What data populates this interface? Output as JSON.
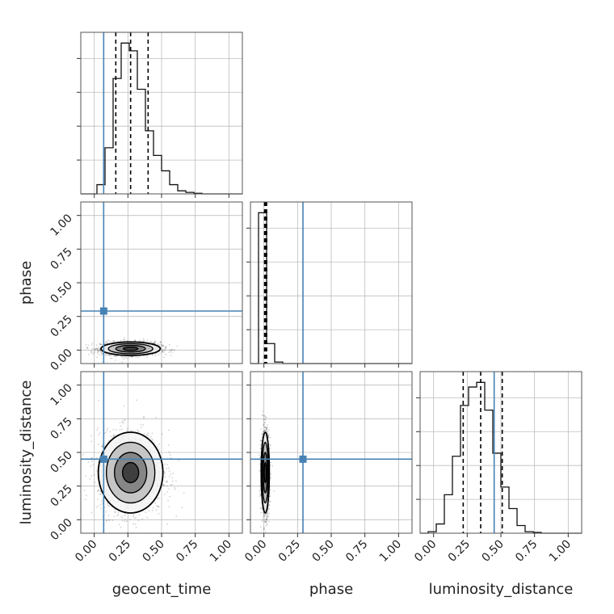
{
  "chart_data": {
    "type": "scatter",
    "title": "",
    "parameters": [
      "geocent_time",
      "phase",
      "luminosity_distance"
    ],
    "axis_labels": {
      "geocent_time": "geocent_time",
      "phase": "phase",
      "luminosity_distance": "luminosity_distance"
    },
    "range": [
      -0.1,
      1.1
    ],
    "ticks": [
      0.0,
      0.25,
      0.5,
      0.75,
      1.0
    ],
    "tick_labels": [
      "0.00",
      "0.25",
      "0.50",
      "0.75",
      "1.00"
    ],
    "grid": true,
    "truth_color": "#4682b4",
    "truths": {
      "geocent_time": 0.07,
      "phase": 0.29,
      "luminosity_distance": 0.45
    },
    "quantiles": {
      "geocent_time": [
        0.16,
        0.27,
        0.4
      ],
      "phase": [
        0.005,
        0.012,
        0.02
      ],
      "luminosity_distance": [
        0.22,
        0.35,
        0.51
      ]
    },
    "histograms": {
      "geocent_time": {
        "edges": [
          -0.1,
          -0.04,
          0.02,
          0.08,
          0.14,
          0.2,
          0.26,
          0.32,
          0.38,
          0.44,
          0.5,
          0.56,
          0.62,
          0.68,
          0.74,
          0.8,
          0.86,
          0.92,
          0.98,
          1.04,
          1.1
        ],
        "counts": [
          0,
          0,
          0.06,
          0.3,
          0.75,
          0.98,
          0.93,
          0.68,
          0.41,
          0.25,
          0.15,
          0.06,
          0.02,
          0.01,
          0.004,
          0,
          0,
          0,
          0,
          0
        ]
      },
      "phase": {
        "edges": [
          -0.1,
          -0.04,
          0.02,
          0.08,
          0.14,
          0.2,
          0.26,
          0.32,
          0.38,
          0.44,
          0.5,
          0.56,
          0.62,
          0.68,
          0.74,
          0.8,
          0.86,
          0.92,
          0.98,
          1.04,
          1.1
        ],
        "counts": [
          0,
          0.98,
          0.13,
          0.01,
          0,
          0,
          0,
          0,
          0,
          0,
          0,
          0,
          0,
          0,
          0,
          0,
          0,
          0,
          0,
          0
        ]
      },
      "luminosity_distance": {
        "edges": [
          -0.1,
          -0.04,
          0.02,
          0.08,
          0.14,
          0.2,
          0.26,
          0.32,
          0.38,
          0.44,
          0.5,
          0.56,
          0.62,
          0.68,
          0.74,
          0.8,
          0.86,
          0.92,
          0.98,
          1.04,
          1.1
        ],
        "counts": [
          0,
          0.01,
          0.06,
          0.25,
          0.5,
          0.83,
          0.95,
          0.98,
          0.8,
          0.52,
          0.3,
          0.16,
          0.05,
          0.01,
          0.005,
          0,
          0,
          0,
          0,
          0
        ]
      }
    },
    "densities": {
      "phase_vs_geocent_time": {
        "cx": 0.27,
        "cy": 0.01,
        "sx": 0.11,
        "sy": 0.025
      },
      "luminosity_distance_vs_geocent_time": {
        "cx": 0.27,
        "cy": 0.35,
        "sx": 0.12,
        "sy": 0.15
      },
      "luminosity_distance_vs_phase": {
        "cx": 0.01,
        "cy": 0.35,
        "sx": 0.015,
        "sy": 0.15
      }
    },
    "contour_levels": [
      0.5,
      1.0,
      1.5,
      2.0
    ]
  }
}
